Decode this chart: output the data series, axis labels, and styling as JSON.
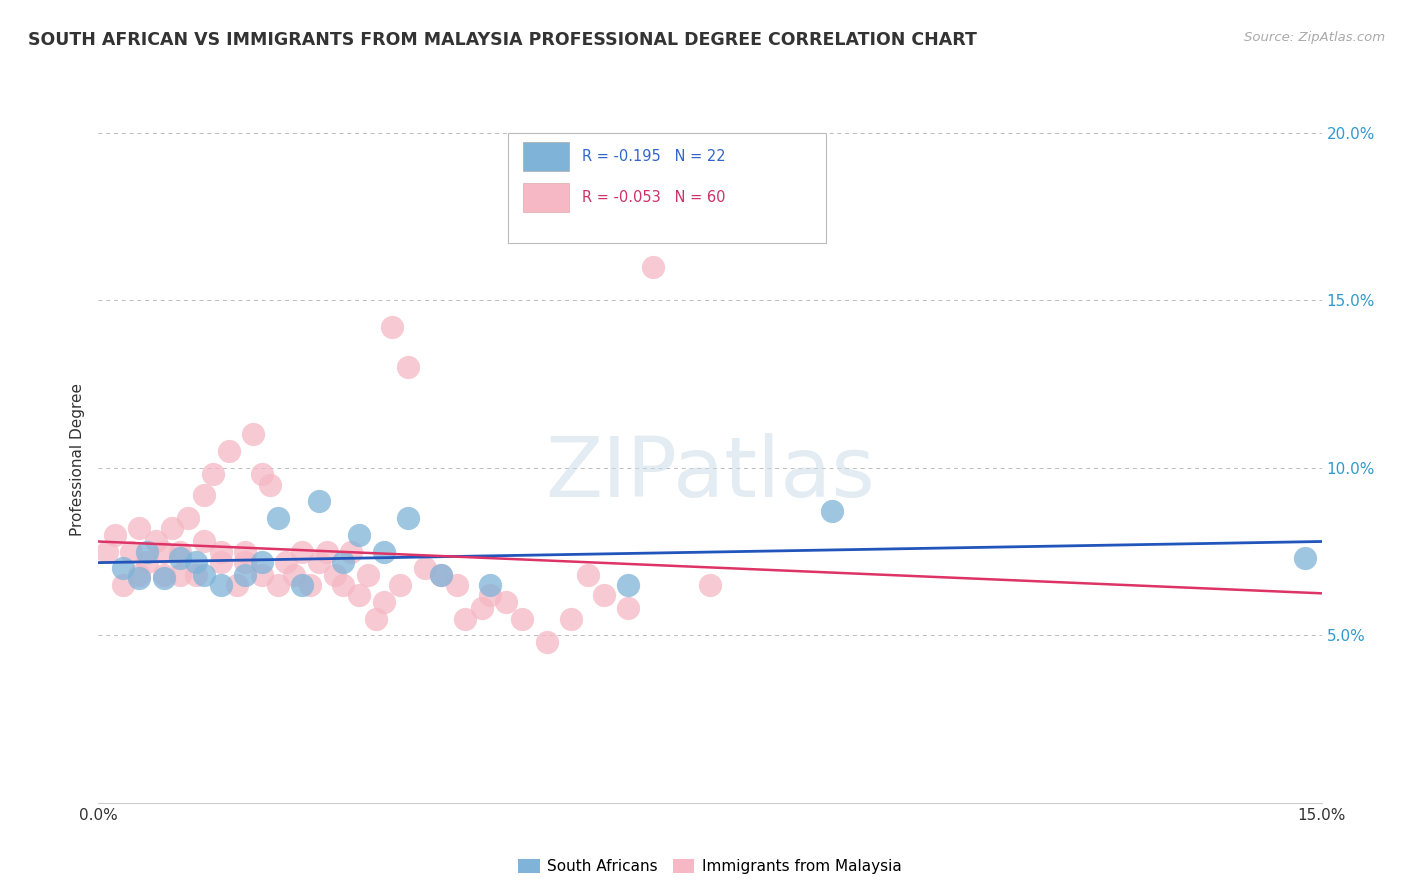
{
  "title": "SOUTH AFRICAN VS IMMIGRANTS FROM MALAYSIA PROFESSIONAL DEGREE CORRELATION CHART",
  "source": "Source: ZipAtlas.com",
  "ylabel": "Professional Degree",
  "x_min": 0.0,
  "x_max": 0.15,
  "y_min": 0.0,
  "y_max": 0.205,
  "x_ticks": [
    0.0,
    0.05,
    0.1,
    0.15
  ],
  "x_tick_labels": [
    "0.0%",
    "",
    "",
    "15.0%"
  ],
  "y_ticks": [
    0.05,
    0.1,
    0.15,
    0.2
  ],
  "y_tick_labels": [
    "5.0%",
    "10.0%",
    "15.0%",
    "20.0%"
  ],
  "blue_R": "-0.195",
  "blue_N": "22",
  "pink_R": "-0.053",
  "pink_N": "60",
  "blue_color": "#7fb3d8",
  "pink_color": "#f5b8c4",
  "blue_line_color": "#2255bb",
  "pink_line_color": "#dd3366",
  "watermark_text": "ZIPatlas",
  "background_color": "#ffffff",
  "blue_scatter_x": [
    0.003,
    0.005,
    0.006,
    0.008,
    0.01,
    0.012,
    0.013,
    0.015,
    0.018,
    0.02,
    0.022,
    0.025,
    0.027,
    0.03,
    0.032,
    0.035,
    0.038,
    0.042,
    0.048,
    0.065,
    0.09,
    0.148
  ],
  "blue_scatter_y": [
    0.07,
    0.067,
    0.075,
    0.067,
    0.073,
    0.072,
    0.068,
    0.065,
    0.068,
    0.072,
    0.085,
    0.065,
    0.09,
    0.072,
    0.08,
    0.075,
    0.085,
    0.068,
    0.065,
    0.065,
    0.087,
    0.073
  ],
  "pink_scatter_x": [
    0.001,
    0.002,
    0.003,
    0.004,
    0.005,
    0.005,
    0.006,
    0.007,
    0.008,
    0.008,
    0.009,
    0.01,
    0.01,
    0.011,
    0.012,
    0.013,
    0.013,
    0.014,
    0.015,
    0.015,
    0.016,
    0.017,
    0.018,
    0.018,
    0.019,
    0.02,
    0.02,
    0.021,
    0.022,
    0.023,
    0.024,
    0.025,
    0.026,
    0.027,
    0.028,
    0.029,
    0.03,
    0.031,
    0.032,
    0.033,
    0.034,
    0.035,
    0.036,
    0.037,
    0.038,
    0.04,
    0.042,
    0.044,
    0.045,
    0.047,
    0.048,
    0.05,
    0.052,
    0.055,
    0.058,
    0.06,
    0.062,
    0.065,
    0.068,
    0.075
  ],
  "pink_scatter_y": [
    0.075,
    0.08,
    0.065,
    0.075,
    0.082,
    0.068,
    0.072,
    0.078,
    0.068,
    0.075,
    0.082,
    0.075,
    0.068,
    0.085,
    0.068,
    0.092,
    0.078,
    0.098,
    0.072,
    0.075,
    0.105,
    0.065,
    0.072,
    0.075,
    0.11,
    0.098,
    0.068,
    0.095,
    0.065,
    0.072,
    0.068,
    0.075,
    0.065,
    0.072,
    0.075,
    0.068,
    0.065,
    0.075,
    0.062,
    0.068,
    0.055,
    0.06,
    0.142,
    0.065,
    0.13,
    0.07,
    0.068,
    0.065,
    0.055,
    0.058,
    0.062,
    0.06,
    0.055,
    0.048,
    0.055,
    0.068,
    0.062,
    0.058,
    0.16,
    0.065
  ]
}
